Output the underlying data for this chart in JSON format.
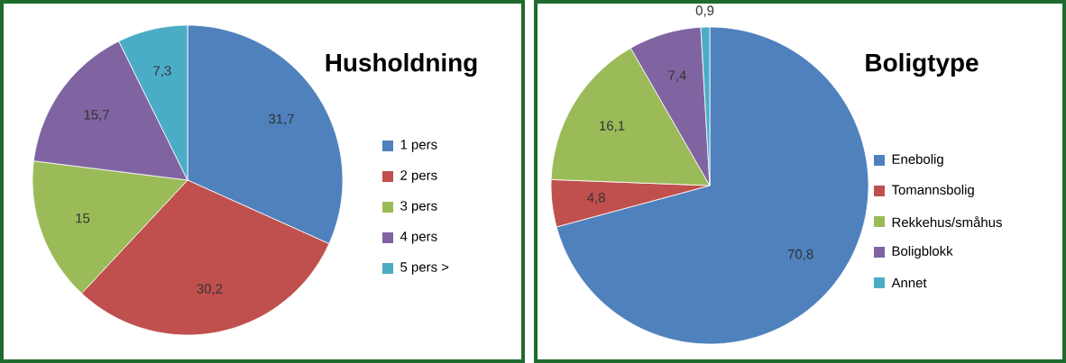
{
  "chart_data": [
    {
      "type": "pie",
      "title": "Husholdning",
      "categories": [
        "1 pers",
        "2 pers",
        "3 pers",
        "4 pers",
        "5 pers >"
      ],
      "values": [
        31.7,
        30.2,
        15,
        15.7,
        7.3
      ],
      "value_labels": [
        "31,7",
        "30,2",
        "15",
        "15,7",
        "7,3"
      ],
      "colors": [
        "#4f81bd",
        "#c0504d",
        "#9bbb59",
        "#8064a2",
        "#4bacc6"
      ],
      "legend": "right"
    },
    {
      "type": "pie",
      "title": "Boligtype",
      "categories": [
        "Enebolig",
        "Tomannsbolig",
        "Rekkehus/småhus",
        "Boligblokk",
        "Annet"
      ],
      "values": [
        70.8,
        4.8,
        16.1,
        7.4,
        0.9
      ],
      "value_labels": [
        "70,8",
        "4,8",
        "16,1",
        "7,4",
        "0,9"
      ],
      "colors": [
        "#4f81bd",
        "#c0504d",
        "#9bbb59",
        "#8064a2",
        "#4bacc6"
      ],
      "legend": "right"
    }
  ]
}
